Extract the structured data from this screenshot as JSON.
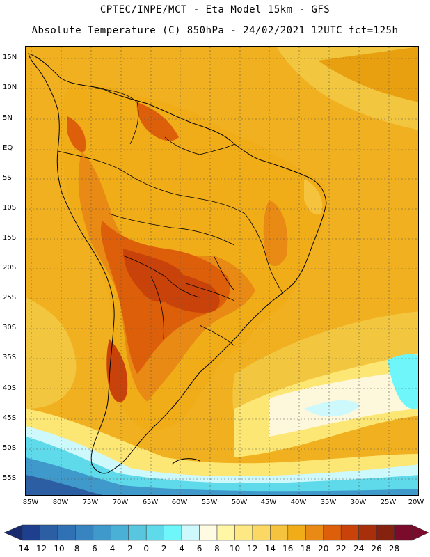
{
  "header": {
    "line1": "CPTEC/INPE/MCT -  Eta Model 15km - GFS",
    "line2": "Absolute Temperature (C) 850hPa - 24/02/2021 12UTC fct=125h"
  },
  "map": {
    "region": "South America",
    "lat_labels": [
      "15N",
      "10N",
      "5N",
      "EQ",
      "5S",
      "10S",
      "15S",
      "20S",
      "25S",
      "30S",
      "35S",
      "40S",
      "45S",
      "50S",
      "55S"
    ],
    "lon_labels": [
      "85W",
      "80W",
      "75W",
      "70W",
      "65W",
      "60W",
      "55W",
      "50W",
      "45W",
      "40W",
      "35W",
      "30W",
      "25W",
      "20W"
    ],
    "colors": {
      "ocean_warm": "#f0b020",
      "ocean_mid": "#f3c640",
      "land_hot": "#d0561a",
      "land_very_hot": "#b84016",
      "cold_ocean": "#5de4f0",
      "cyan": "#40c8e8",
      "pale": "#fff8d8",
      "coast": "#000000"
    }
  },
  "colorbar": {
    "labels": [
      "-14",
      "-12",
      "-10",
      "-8",
      "-6",
      "-4",
      "-2",
      "0",
      "2",
      "4",
      "6",
      "8",
      "10",
      "12",
      "14",
      "16",
      "18",
      "20",
      "22",
      "24",
      "26",
      "28"
    ],
    "colors": [
      "#1e3f8e",
      "#2c5ea3",
      "#3070b4",
      "#3784c0",
      "#3f9acb",
      "#4bb0d5",
      "#58c6df",
      "#5fdaea",
      "#6ff6fb",
      "#cdf8fc",
      "#fffbe2",
      "#fff6a6",
      "#fee883",
      "#fbd863",
      "#f5c33d",
      "#f0ad18",
      "#e88a14",
      "#de5f0a",
      "#c84209",
      "#a82f0c",
      "#85210f",
      "#7a0b2a"
    ],
    "end_low": "#1a2a6e",
    "end_high": "#7a0b2a"
  }
}
